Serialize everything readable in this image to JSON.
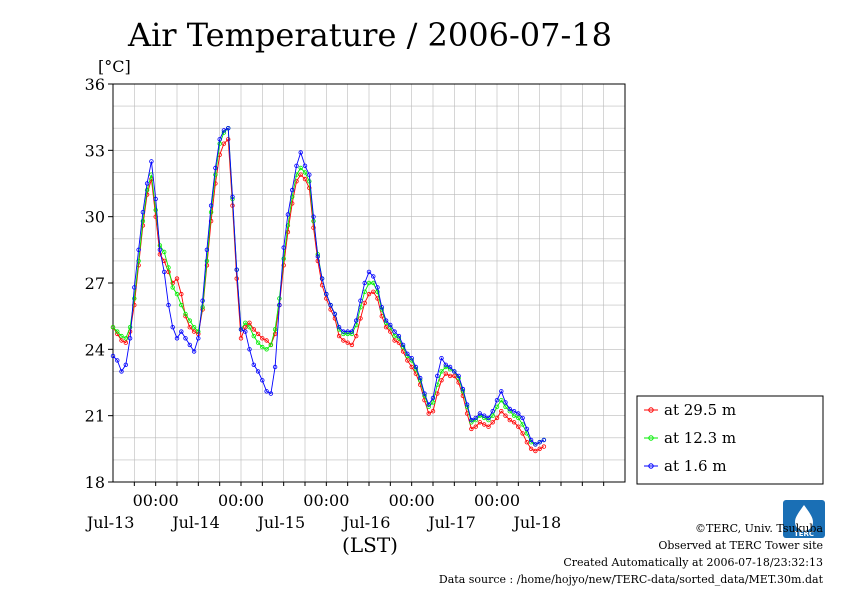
{
  "chart_data": {
    "type": "line",
    "title": "Air Temperature / 2006-07-18",
    "ylabel": "[°C]",
    "xlabel": "(LST)",
    "ylim": [
      18,
      36
    ],
    "yticks": [
      18,
      21,
      24,
      27,
      30,
      33,
      36
    ],
    "xlim": [
      0,
      6
    ],
    "x_unit_note": "days from Jul-12 12:00",
    "time_ticks": [
      {
        "x": 0.5,
        "label": "00:00"
      },
      {
        "x": 1.5,
        "label": "00:00"
      },
      {
        "x": 2.5,
        "label": "00:00"
      },
      {
        "x": 3.5,
        "label": "00:00"
      },
      {
        "x": 4.5,
        "label": "00:00"
      }
    ],
    "date_labels": [
      {
        "x": 0.5,
        "label": "Jul-13"
      },
      {
        "x": 1.5,
        "label": "Jul-14"
      },
      {
        "x": 2.5,
        "label": "Jul-15"
      },
      {
        "x": 3.5,
        "label": "Jul-16"
      },
      {
        "x": 4.5,
        "label": "Jul-17"
      },
      {
        "x": 5.5,
        "label": "Jul-18"
      }
    ],
    "grid": true,
    "legend_position": "right",
    "series": [
      {
        "name": "at 29.5 m",
        "color": "#ff0000",
        "points": [
          [
            0.0,
            25.0
          ],
          [
            0.05,
            24.7
          ],
          [
            0.1,
            24.4
          ],
          [
            0.15,
            24.3
          ],
          [
            0.2,
            24.8
          ],
          [
            0.25,
            26.0
          ],
          [
            0.3,
            27.8
          ],
          [
            0.35,
            29.6
          ],
          [
            0.4,
            31.0
          ],
          [
            0.45,
            31.7
          ],
          [
            0.5,
            30.0
          ],
          [
            0.55,
            28.3
          ],
          [
            0.6,
            28.0
          ],
          [
            0.65,
            27.5
          ],
          [
            0.7,
            27.0
          ],
          [
            0.75,
            27.2
          ],
          [
            0.8,
            26.5
          ],
          [
            0.85,
            25.5
          ],
          [
            0.9,
            25.0
          ],
          [
            0.95,
            24.8
          ],
          [
            1.0,
            24.7
          ],
          [
            1.05,
            25.8
          ],
          [
            1.1,
            27.8
          ],
          [
            1.15,
            29.8
          ],
          [
            1.2,
            31.5
          ],
          [
            1.25,
            32.8
          ],
          [
            1.3,
            33.3
          ],
          [
            1.35,
            33.5
          ],
          [
            1.4,
            30.5
          ],
          [
            1.45,
            27.2
          ],
          [
            1.5,
            24.5
          ],
          [
            1.55,
            25.0
          ],
          [
            1.6,
            25.2
          ],
          [
            1.65,
            24.9
          ],
          [
            1.7,
            24.7
          ],
          [
            1.75,
            24.5
          ],
          [
            1.8,
            24.4
          ],
          [
            1.85,
            24.2
          ],
          [
            1.9,
            24.7
          ],
          [
            1.95,
            26.0
          ],
          [
            2.0,
            27.8
          ],
          [
            2.05,
            29.3
          ],
          [
            2.1,
            30.6
          ],
          [
            2.15,
            31.6
          ],
          [
            2.2,
            31.9
          ],
          [
            2.25,
            31.7
          ],
          [
            2.3,
            31.3
          ],
          [
            2.35,
            29.5
          ],
          [
            2.4,
            28.0
          ],
          [
            2.45,
            26.9
          ],
          [
            2.5,
            26.3
          ],
          [
            2.55,
            25.8
          ],
          [
            2.6,
            25.4
          ],
          [
            2.65,
            24.6
          ],
          [
            2.7,
            24.4
          ],
          [
            2.75,
            24.3
          ],
          [
            2.8,
            24.2
          ],
          [
            2.85,
            24.6
          ],
          [
            2.9,
            25.4
          ],
          [
            2.95,
            26.1
          ],
          [
            3.0,
            26.5
          ],
          [
            3.05,
            26.6
          ],
          [
            3.1,
            26.3
          ],
          [
            3.15,
            25.5
          ],
          [
            3.2,
            25.0
          ],
          [
            3.25,
            24.8
          ],
          [
            3.3,
            24.4
          ],
          [
            3.35,
            24.3
          ],
          [
            3.4,
            23.9
          ],
          [
            3.45,
            23.5
          ],
          [
            3.5,
            23.2
          ],
          [
            3.55,
            22.9
          ],
          [
            3.6,
            22.4
          ],
          [
            3.65,
            21.7
          ],
          [
            3.7,
            21.1
          ],
          [
            3.75,
            21.2
          ],
          [
            3.8,
            22.0
          ],
          [
            3.85,
            22.6
          ],
          [
            3.9,
            22.9
          ],
          [
            3.95,
            22.8
          ],
          [
            4.0,
            22.8
          ],
          [
            4.05,
            22.5
          ],
          [
            4.1,
            21.9
          ],
          [
            4.15,
            21.1
          ],
          [
            4.2,
            20.4
          ],
          [
            4.25,
            20.5
          ],
          [
            4.3,
            20.7
          ],
          [
            4.35,
            20.6
          ],
          [
            4.4,
            20.5
          ],
          [
            4.45,
            20.7
          ],
          [
            4.5,
            20.9
          ],
          [
            4.55,
            21.2
          ],
          [
            4.6,
            21.0
          ],
          [
            4.65,
            20.8
          ],
          [
            4.7,
            20.7
          ],
          [
            4.75,
            20.5
          ],
          [
            4.8,
            20.2
          ],
          [
            4.85,
            19.8
          ],
          [
            4.9,
            19.5
          ],
          [
            4.95,
            19.4
          ],
          [
            5.0,
            19.5
          ],
          [
            5.05,
            19.6
          ]
        ]
      },
      {
        "name": "at 12.3 m",
        "color": "#00ee00",
        "points": [
          [
            0.0,
            25.0
          ],
          [
            0.05,
            24.8
          ],
          [
            0.1,
            24.6
          ],
          [
            0.15,
            24.5
          ],
          [
            0.2,
            25.0
          ],
          [
            0.25,
            26.3
          ],
          [
            0.3,
            28.0
          ],
          [
            0.35,
            29.8
          ],
          [
            0.4,
            31.2
          ],
          [
            0.45,
            31.9
          ],
          [
            0.5,
            30.3
          ],
          [
            0.55,
            28.7
          ],
          [
            0.6,
            28.4
          ],
          [
            0.65,
            27.7
          ],
          [
            0.7,
            26.8
          ],
          [
            0.75,
            26.5
          ],
          [
            0.8,
            26.0
          ],
          [
            0.85,
            25.6
          ],
          [
            0.9,
            25.3
          ],
          [
            0.95,
            25.0
          ],
          [
            1.0,
            24.8
          ],
          [
            1.05,
            25.9
          ],
          [
            1.1,
            28.0
          ],
          [
            1.15,
            30.2
          ],
          [
            1.2,
            31.9
          ],
          [
            1.25,
            33.3
          ],
          [
            1.3,
            33.8
          ],
          [
            1.35,
            34.0
          ],
          [
            1.4,
            30.8
          ],
          [
            1.45,
            27.6
          ],
          [
            1.5,
            24.9
          ],
          [
            1.55,
            25.2
          ],
          [
            1.6,
            25.0
          ],
          [
            1.65,
            24.6
          ],
          [
            1.7,
            24.3
          ],
          [
            1.75,
            24.1
          ],
          [
            1.8,
            24.0
          ],
          [
            1.85,
            24.2
          ],
          [
            1.9,
            24.9
          ],
          [
            1.95,
            26.3
          ],
          [
            2.0,
            28.1
          ],
          [
            2.05,
            29.6
          ],
          [
            2.1,
            30.9
          ],
          [
            2.15,
            31.9
          ],
          [
            2.2,
            32.2
          ],
          [
            2.25,
            32.0
          ],
          [
            2.3,
            31.6
          ],
          [
            2.35,
            29.8
          ],
          [
            2.4,
            28.3
          ],
          [
            2.45,
            27.2
          ],
          [
            2.5,
            26.5
          ],
          [
            2.55,
            26.0
          ],
          [
            2.6,
            25.6
          ],
          [
            2.65,
            24.9
          ],
          [
            2.7,
            24.7
          ],
          [
            2.75,
            24.7
          ],
          [
            2.8,
            24.7
          ],
          [
            2.85,
            25.1
          ],
          [
            2.9,
            25.9
          ],
          [
            2.95,
            26.6
          ],
          [
            3.0,
            27.0
          ],
          [
            3.05,
            27.0
          ],
          [
            3.1,
            26.6
          ],
          [
            3.15,
            25.8
          ],
          [
            3.2,
            25.2
          ],
          [
            3.25,
            25.0
          ],
          [
            3.3,
            24.6
          ],
          [
            3.35,
            24.5
          ],
          [
            3.4,
            24.1
          ],
          [
            3.45,
            23.7
          ],
          [
            3.5,
            23.5
          ],
          [
            3.55,
            23.1
          ],
          [
            3.6,
            22.6
          ],
          [
            3.65,
            21.9
          ],
          [
            3.7,
            21.4
          ],
          [
            3.75,
            21.6
          ],
          [
            3.8,
            22.4
          ],
          [
            3.85,
            23.0
          ],
          [
            3.9,
            23.2
          ],
          [
            3.95,
            23.1
          ],
          [
            4.0,
            23.0
          ],
          [
            4.05,
            22.7
          ],
          [
            4.1,
            22.1
          ],
          [
            4.15,
            21.4
          ],
          [
            4.2,
            20.7
          ],
          [
            4.25,
            20.8
          ],
          [
            4.3,
            21.0
          ],
          [
            4.35,
            20.9
          ],
          [
            4.4,
            20.8
          ],
          [
            4.45,
            21.0
          ],
          [
            4.5,
            21.4
          ],
          [
            4.55,
            21.7
          ],
          [
            4.6,
            21.4
          ],
          [
            4.65,
            21.2
          ],
          [
            4.7,
            21.0
          ],
          [
            4.75,
            20.9
          ],
          [
            4.8,
            20.6
          ],
          [
            4.85,
            20.2
          ],
          [
            4.9,
            19.8
          ],
          [
            4.95,
            19.7
          ],
          [
            5.0,
            19.8
          ],
          [
            5.05,
            19.9
          ]
        ]
      },
      {
        "name": "at 1.6 m",
        "color": "#0000ff",
        "points": [
          [
            0.0,
            23.7
          ],
          [
            0.05,
            23.5
          ],
          [
            0.1,
            23.0
          ],
          [
            0.15,
            23.3
          ],
          [
            0.2,
            24.5
          ],
          [
            0.25,
            26.8
          ],
          [
            0.3,
            28.5
          ],
          [
            0.35,
            30.2
          ],
          [
            0.4,
            31.5
          ],
          [
            0.45,
            32.5
          ],
          [
            0.5,
            30.8
          ],
          [
            0.55,
            28.5
          ],
          [
            0.6,
            27.5
          ],
          [
            0.65,
            26.0
          ],
          [
            0.7,
            25.0
          ],
          [
            0.75,
            24.5
          ],
          [
            0.8,
            24.8
          ],
          [
            0.85,
            24.5
          ],
          [
            0.9,
            24.2
          ],
          [
            0.95,
            23.9
          ],
          [
            1.0,
            24.5
          ],
          [
            1.05,
            26.2
          ],
          [
            1.1,
            28.5
          ],
          [
            1.15,
            30.5
          ],
          [
            1.2,
            32.2
          ],
          [
            1.25,
            33.5
          ],
          [
            1.3,
            33.9
          ],
          [
            1.35,
            34.0
          ],
          [
            1.4,
            30.9
          ],
          [
            1.45,
            27.6
          ],
          [
            1.5,
            24.9
          ],
          [
            1.55,
            24.8
          ],
          [
            1.6,
            24.0
          ],
          [
            1.65,
            23.3
          ],
          [
            1.7,
            23.0
          ],
          [
            1.75,
            22.6
          ],
          [
            1.8,
            22.1
          ],
          [
            1.85,
            22.0
          ],
          [
            1.9,
            23.2
          ],
          [
            1.95,
            26.0
          ],
          [
            2.0,
            28.6
          ],
          [
            2.05,
            30.1
          ],
          [
            2.1,
            31.2
          ],
          [
            2.15,
            32.3
          ],
          [
            2.2,
            32.9
          ],
          [
            2.25,
            32.3
          ],
          [
            2.3,
            31.9
          ],
          [
            2.35,
            30.0
          ],
          [
            2.4,
            28.2
          ],
          [
            2.45,
            27.2
          ],
          [
            2.5,
            26.5
          ],
          [
            2.55,
            26.0
          ],
          [
            2.6,
            25.6
          ],
          [
            2.65,
            25.0
          ],
          [
            2.7,
            24.8
          ],
          [
            2.75,
            24.8
          ],
          [
            2.8,
            24.8
          ],
          [
            2.85,
            25.3
          ],
          [
            2.9,
            26.2
          ],
          [
            2.95,
            27.0
          ],
          [
            3.0,
            27.5
          ],
          [
            3.05,
            27.3
          ],
          [
            3.1,
            26.8
          ],
          [
            3.15,
            25.9
          ],
          [
            3.2,
            25.3
          ],
          [
            3.25,
            25.1
          ],
          [
            3.3,
            24.8
          ],
          [
            3.35,
            24.6
          ],
          [
            3.4,
            24.2
          ],
          [
            3.45,
            23.8
          ],
          [
            3.5,
            23.6
          ],
          [
            3.55,
            23.2
          ],
          [
            3.6,
            22.7
          ],
          [
            3.65,
            22.0
          ],
          [
            3.7,
            21.5
          ],
          [
            3.75,
            21.8
          ],
          [
            3.8,
            22.8
          ],
          [
            3.85,
            23.6
          ],
          [
            3.9,
            23.3
          ],
          [
            3.95,
            23.2
          ],
          [
            4.0,
            23.0
          ],
          [
            4.05,
            22.8
          ],
          [
            4.1,
            22.2
          ],
          [
            4.15,
            21.5
          ],
          [
            4.2,
            20.8
          ],
          [
            4.25,
            20.9
          ],
          [
            4.3,
            21.1
          ],
          [
            4.35,
            21.0
          ],
          [
            4.4,
            20.9
          ],
          [
            4.45,
            21.2
          ],
          [
            4.5,
            21.7
          ],
          [
            4.55,
            22.1
          ],
          [
            4.6,
            21.6
          ],
          [
            4.65,
            21.3
          ],
          [
            4.7,
            21.2
          ],
          [
            4.75,
            21.1
          ],
          [
            4.8,
            20.9
          ],
          [
            4.85,
            20.4
          ],
          [
            4.9,
            19.9
          ],
          [
            4.95,
            19.7
          ],
          [
            5.0,
            19.8
          ],
          [
            5.05,
            19.9
          ]
        ]
      }
    ]
  },
  "footer": {
    "copyright": "©TERC, Univ. Tsukuba",
    "observed": "Observed at TERC Tower site",
    "created": "Created Automatically at 2006-07-18/23:32:13",
    "source": "Data source : /home/hojyo/new/TERC-data/sorted_data/MET.30m.dat"
  },
  "logo": {
    "text": "TERC",
    "color": "#1a6fb5"
  }
}
